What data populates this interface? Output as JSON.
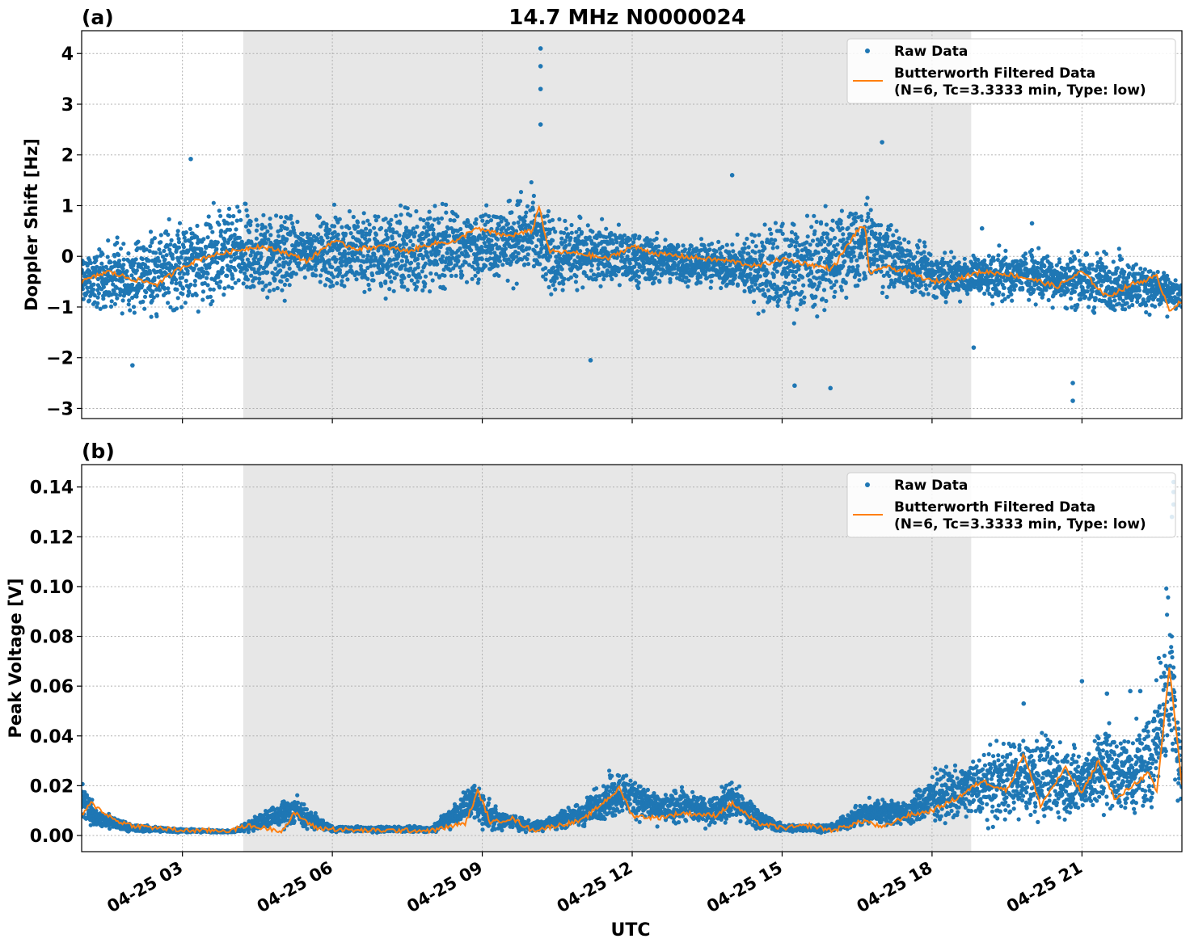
{
  "figure": {
    "title": "14.7 MHz N0000024",
    "xlabel": "UTC",
    "colors": {
      "raw": "#1f77b4",
      "filtered": "#ff7f0e",
      "shade": "#e7e7e7",
      "grid": "#b0b0b0"
    }
  },
  "chart_data": [
    {
      "panel_label": "(a)",
      "type": "scatter",
      "ylabel": "Doppler Shift [Hz]",
      "xlim": [
        "04-25 00:59",
        "04-25 23:00"
      ],
      "ylim": [
        -3.2,
        4.45
      ],
      "yticks": [
        -3,
        -2,
        -1,
        0,
        1,
        2,
        3,
        4
      ],
      "ytick_labels": [
        "−3",
        "−2",
        "−1",
        "0",
        "1",
        "2",
        "3",
        "4"
      ],
      "xticks": [
        "04-25 03:00",
        "04-25 06:00",
        "04-25 09:00",
        "04-25 12:00",
        "04-25 15:00",
        "04-25 18:00",
        "04-25 21:00"
      ],
      "xtick_labels": [
        "",
        "",
        "",
        "",
        "",
        "",
        ""
      ],
      "shaded_interval": [
        "04-25 04:13",
        "04-25 18:47"
      ],
      "grid": true,
      "legend": {
        "placement": "upper right",
        "entries": [
          "Raw Data",
          "Butterworth Filtered Data",
          "(N=6, Tc=3.3333 min, Type: low)"
        ]
      },
      "series": [
        {
          "name": "Raw Data",
          "kind": "scatter_band",
          "x": [
            "04-25 01:00",
            "04-25 02:00",
            "04-25 03:00",
            "04-25 04:00",
            "04-25 05:00",
            "04-25 05:30",
            "04-25 06:00",
            "04-25 07:00",
            "04-25 08:00",
            "04-25 09:00",
            "04-25 10:00",
            "04-25 10:30",
            "04-25 11:00",
            "04-25 12:00",
            "04-25 13:00",
            "04-25 14:00",
            "04-25 15:00",
            "04-25 16:00",
            "04-25 16:45",
            "04-25 17:30",
            "04-25 18:00",
            "04-25 19:00",
            "04-25 20:00",
            "04-25 21:00",
            "04-25 22:00",
            "04-25 23:00"
          ],
          "y_low": [
            -1.3,
            -1.3,
            -1.4,
            -1.2,
            -1.1,
            -0.6,
            -0.9,
            -1.1,
            -1.0,
            -0.6,
            -0.8,
            -1.1,
            -0.8,
            -0.8,
            -0.7,
            -0.8,
            -1.7,
            -1.2,
            -0.9,
            -0.9,
            -1.0,
            -1.0,
            -1.0,
            -1.3,
            -1.3,
            -1.2
          ],
          "y_high": [
            0.3,
            0.5,
            1.1,
            1.3,
            1.2,
            0.8,
            1.2,
            1.2,
            1.3,
            1.1,
            1.6,
            0.9,
            1.0,
            0.7,
            0.5,
            0.4,
            1.2,
            1.1,
            1.4,
            0.5,
            0.3,
            0.2,
            0.3,
            0.3,
            0.2,
            -0.4
          ],
          "outliers": [
            [
              "04-25 10:10",
              4.1
            ],
            [
              "04-25 10:10",
              3.75
            ],
            [
              "04-25 10:10",
              3.3
            ],
            [
              "04-25 10:10",
              2.6
            ],
            [
              "04-25 03:10",
              1.92
            ],
            [
              "04-25 17:00",
              2.25
            ],
            [
              "04-25 14:00",
              1.6
            ],
            [
              "04-25 15:58",
              -2.6
            ],
            [
              "04-25 20:49",
              -2.85
            ],
            [
              "04-25 20:49",
              -2.5
            ],
            [
              "04-25 11:10",
              -2.05
            ],
            [
              "04-25 02:00",
              -2.15
            ],
            [
              "04-25 15:15",
              -2.55
            ],
            [
              "04-25 18:50",
              -1.8
            ],
            [
              "04-25 20:00",
              0.65
            ],
            [
              "04-25 19:00",
              0.55
            ]
          ]
        },
        {
          "name": "Butterworth Filtered Data",
          "kind": "line",
          "x": [
            "04-25 01:00",
            "04-25 01:30",
            "04-25 02:00",
            "04-25 02:30",
            "04-25 03:00",
            "04-25 03:30",
            "04-25 04:00",
            "04-25 04:30",
            "04-25 05:00",
            "04-25 05:30",
            "04-25 06:00",
            "04-25 06:30",
            "04-25 07:00",
            "04-25 07:30",
            "04-25 08:00",
            "04-25 08:30",
            "04-25 08:50",
            "04-25 09:30",
            "04-25 10:00",
            "04-25 10:08",
            "04-25 10:20",
            "04-25 11:00",
            "04-25 11:30",
            "04-25 12:00",
            "04-25 12:30",
            "04-25 13:00",
            "04-25 13:30",
            "04-25 14:00",
            "04-25 14:30",
            "04-25 15:00",
            "04-25 15:30",
            "04-25 16:00",
            "04-25 16:30",
            "04-25 16:40",
            "04-25 16:45",
            "04-25 17:00",
            "04-25 17:30",
            "04-25 18:00",
            "04-25 18:30",
            "04-25 19:00",
            "04-25 19:30",
            "04-25 20:00",
            "04-25 20:30",
            "04-25 21:00",
            "04-25 21:30",
            "04-25 22:00",
            "04-25 22:30",
            "04-25 22:45",
            "04-25 23:00"
          ],
          "y": [
            -0.5,
            -0.3,
            -0.45,
            -0.55,
            -0.2,
            0.0,
            0.1,
            0.2,
            0.1,
            -0.1,
            0.3,
            0.15,
            0.2,
            0.1,
            0.25,
            0.3,
            0.55,
            0.4,
            0.5,
            1.0,
            0.1,
            0.05,
            -0.05,
            0.2,
            0.05,
            0.0,
            -0.05,
            -0.1,
            -0.2,
            -0.05,
            -0.15,
            -0.25,
            0.5,
            0.6,
            -0.4,
            -0.2,
            -0.3,
            -0.5,
            -0.45,
            -0.3,
            -0.35,
            -0.45,
            -0.6,
            -0.3,
            -0.8,
            -0.55,
            -0.4,
            -1.05,
            -0.9
          ]
        }
      ]
    },
    {
      "panel_label": "(b)",
      "type": "scatter",
      "ylabel": "Peak Voltage [V]",
      "xlim": [
        "04-25 00:59",
        "04-25 23:00"
      ],
      "ylim": [
        -0.0065,
        0.149
      ],
      "yticks": [
        0.0,
        0.02,
        0.04,
        0.06,
        0.08,
        0.1,
        0.12,
        0.14
      ],
      "ytick_labels": [
        "0.00",
        "0.02",
        "0.04",
        "0.06",
        "0.08",
        "0.10",
        "0.12",
        "0.14"
      ],
      "xticks": [
        "04-25 03:00",
        "04-25 06:00",
        "04-25 09:00",
        "04-25 12:00",
        "04-25 15:00",
        "04-25 18:00",
        "04-25 21:00"
      ],
      "xtick_labels": [
        "04-25 03",
        "04-25 06",
        "04-25 09",
        "04-25 12",
        "04-25 15",
        "04-25 18",
        "04-25 21"
      ],
      "shaded_interval": [
        "04-25 04:13",
        "04-25 18:47"
      ],
      "grid": true,
      "legend": {
        "placement": "upper right",
        "entries": [
          "Raw Data",
          "Butterworth Filtered Data",
          "(N=6, Tc=3.3333 min, Type: low)"
        ]
      },
      "series": [
        {
          "name": "Raw Data",
          "kind": "scatter_band",
          "x": [
            "04-25 01:00",
            "04-25 01:15",
            "04-25 02:00",
            "04-25 03:00",
            "04-25 04:00",
            "04-25 05:15",
            "04-25 05:30",
            "04-25 06:00",
            "04-25 07:00",
            "04-25 08:00",
            "04-25 08:50",
            "04-25 09:10",
            "04-25 10:00",
            "04-25 11:00",
            "04-25 11:45",
            "04-25 12:30",
            "04-25 13:00",
            "04-25 13:30",
            "04-25 14:00",
            "04-25 14:30",
            "04-25 15:00",
            "04-25 16:00",
            "04-25 16:45",
            "04-25 17:30",
            "04-25 18:00",
            "04-25 19:00",
            "04-25 20:00",
            "04-25 20:30",
            "04-25 21:00",
            "04-25 21:30",
            "04-25 22:00",
            "04-25 22:25",
            "04-25 22:45",
            "04-25 23:00"
          ],
          "y_low": [
            0.003,
            0.002,
            0.001,
            0.001,
            0.001,
            0.001,
            0.002,
            0.001,
            0.001,
            0.001,
            0.002,
            0.001,
            0.001,
            0.002,
            0.004,
            0.003,
            0.003,
            0.002,
            0.002,
            0.002,
            0.001,
            0.001,
            0.002,
            0.003,
            0.003,
            0.002,
            0.002,
            0.003,
            0.002,
            0.003,
            0.002,
            0.004,
            0.008,
            0.005
          ],
          "y_high": [
            0.027,
            0.012,
            0.005,
            0.003,
            0.002,
            0.02,
            0.012,
            0.004,
            0.004,
            0.004,
            0.026,
            0.014,
            0.006,
            0.015,
            0.032,
            0.018,
            0.021,
            0.017,
            0.026,
            0.012,
            0.005,
            0.005,
            0.017,
            0.015,
            0.028,
            0.038,
            0.046,
            0.043,
            0.04,
            0.055,
            0.045,
            0.058,
            0.123,
            0.04
          ],
          "outliers": [
            [
              "04-25 22:50",
              0.142
            ],
            [
              "04-25 22:50",
              0.138
            ],
            [
              "04-25 22:50",
              0.133
            ],
            [
              "04-25 22:48",
              0.128
            ],
            [
              "04-25 22:10",
              0.058
            ],
            [
              "04-25 21:00",
              0.062
            ],
            [
              "04-25 19:50",
              0.053
            ],
            [
              "04-25 21:58",
              0.058
            ],
            [
              "04-25 21:30",
              0.057
            ]
          ]
        },
        {
          "name": "Butterworth Filtered Data",
          "kind": "line",
          "x": [
            "04-25 01:00",
            "04-25 01:10",
            "04-25 01:40",
            "04-25 02:00",
            "04-25 03:00",
            "04-25 04:00",
            "04-25 04:15",
            "04-25 05:00",
            "04-25 05:15",
            "04-25 05:40",
            "04-25 06:30",
            "04-25 08:00",
            "04-25 08:40",
            "04-25 08:55",
            "04-25 09:10",
            "04-25 09:35",
            "04-25 10:00",
            "04-25 11:00",
            "04-25 11:45",
            "04-25 12:00",
            "04-25 12:30",
            "04-25 13:00",
            "04-25 13:40",
            "04-25 14:00",
            "04-25 14:30",
            "04-25 15:00",
            "04-25 15:35",
            "04-25 16:00",
            "04-25 16:40",
            "04-25 17:00",
            "04-25 17:30",
            "04-25 18:00",
            "04-25 18:30",
            "04-25 19:00",
            "04-25 19:30",
            "04-25 19:50",
            "04-25 20:10",
            "04-25 20:40",
            "04-25 21:00",
            "04-25 21:20",
            "04-25 21:40",
            "04-25 22:00",
            "04-25 22:20",
            "04-25 22:30",
            "04-25 22:45",
            "04-25 22:55",
            "04-25 23:00"
          ],
          "y": [
            0.008,
            0.013,
            0.006,
            0.004,
            0.002,
            0.002,
            0.004,
            0.002,
            0.009,
            0.003,
            0.002,
            0.002,
            0.005,
            0.018,
            0.005,
            0.007,
            0.002,
            0.006,
            0.019,
            0.008,
            0.007,
            0.009,
            0.008,
            0.013,
            0.005,
            0.003,
            0.004,
            0.002,
            0.006,
            0.003,
            0.008,
            0.01,
            0.015,
            0.022,
            0.018,
            0.033,
            0.012,
            0.027,
            0.017,
            0.03,
            0.014,
            0.02,
            0.025,
            0.017,
            0.068,
            0.036,
            0.02
          ]
        }
      ]
    }
  ]
}
